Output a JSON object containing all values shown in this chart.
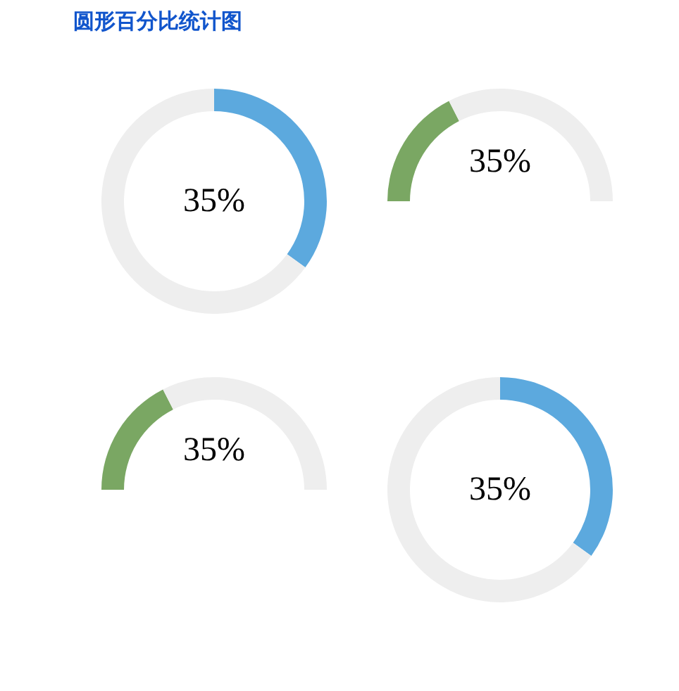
{
  "chart_data": [
    {
      "type": "donut",
      "title": "圆形百分比统计图",
      "categories": [
        null,
        null
      ],
      "values": [
        35,
        65
      ],
      "colors": [
        "#5ca9de",
        "#eeeeee"
      ],
      "annotations": [
        "35%"
      ]
    },
    {
      "type": "donut",
      "orientation": "horizontal",
      "categories": [
        null,
        null
      ],
      "values": [
        35,
        65
      ],
      "colors": [
        "#7aa763",
        "#eeeeee"
      ],
      "annotations": [
        "35%"
      ]
    },
    {
      "type": "donut",
      "orientation": "horizontal",
      "categories": [
        null,
        null
      ],
      "values": [
        35,
        65
      ],
      "colors": [
        "#7aa763",
        "#eeeeee"
      ],
      "annotations": [
        "35%"
      ]
    },
    {
      "type": "donut",
      "categories": [
        null,
        null
      ],
      "values": [
        35,
        65
      ],
      "colors": [
        "#5ca9de",
        "#eeeeee"
      ],
      "annotations": [
        "35%"
      ]
    }
  ]
}
